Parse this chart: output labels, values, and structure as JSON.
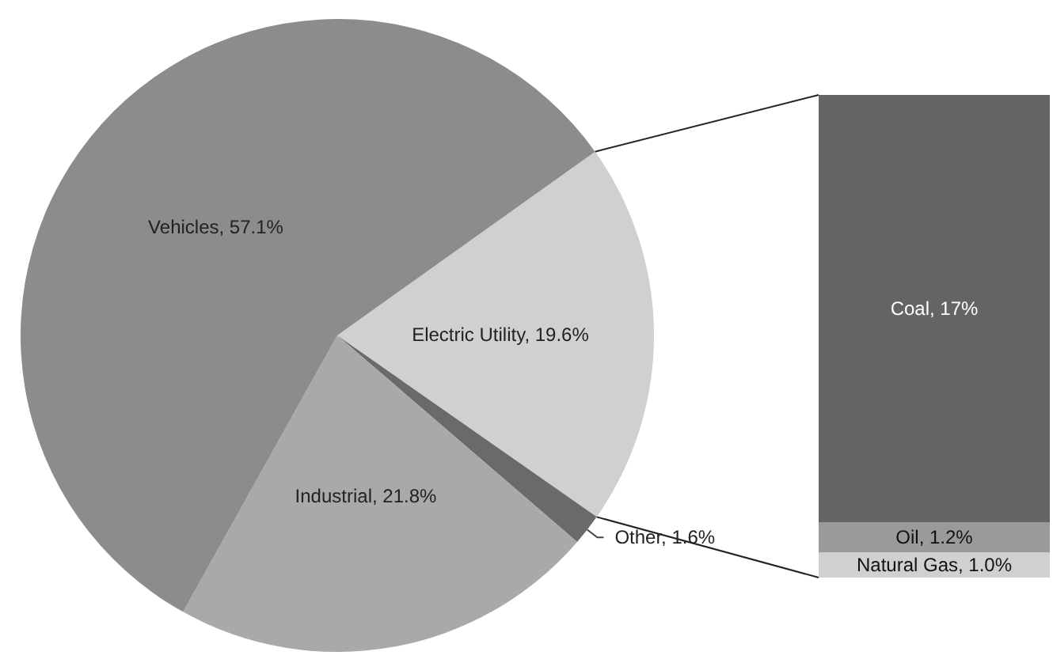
{
  "chart_data": [
    {
      "type": "pie",
      "categories": [
        "Electric Utility",
        "Other",
        "Industrial",
        "Vehicles"
      ],
      "values": [
        19.6,
        1.6,
        21.8,
        57.1
      ],
      "colors": [
        "#d0d0d0",
        "#6a6a6c",
        "#a9a9ab",
        "#8c8c8e"
      ],
      "value_labels": [
        "19.6%",
        "1.6%",
        "21.8%",
        "57.1%"
      ],
      "legend": false
    },
    {
      "type": "bar",
      "stacked": true,
      "categories": [
        null
      ],
      "series": [
        {
          "color": "#d0d0d0",
          "values": [
            1.0
          ],
          "value_labels": [
            "Natural Gas, 1.0%"
          ]
        },
        {
          "color": "#9a9a9a",
          "values": [
            1.2
          ],
          "value_labels": [
            "Oil, 1.2%"
          ]
        },
        {
          "color": "#646466",
          "values": [
            17
          ],
          "value_labels": [
            "Coal, 17%"
          ]
        }
      ],
      "legend": false
    }
  ]
}
